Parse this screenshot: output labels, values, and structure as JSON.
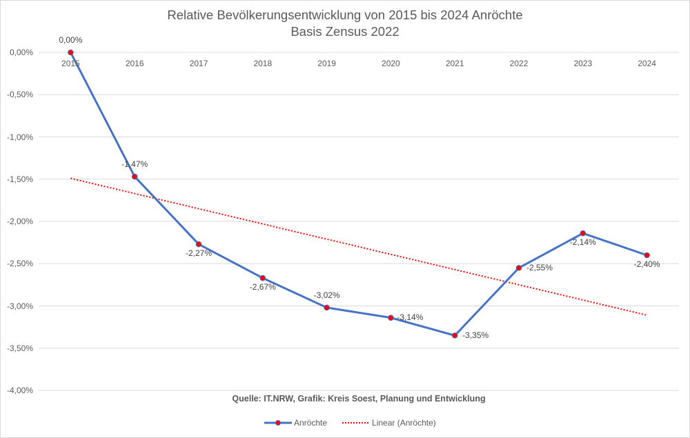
{
  "chart_data": {
    "type": "line",
    "title": "Relative Bevölkerungsentwicklung von 2015 bis 2024 Anröchte",
    "subtitle": "Basis Zensus 2022",
    "categories": [
      "2015",
      "2016",
      "2017",
      "2018",
      "2019",
      "2020",
      "2021",
      "2022",
      "2023",
      "2024"
    ],
    "series": [
      {
        "name": "Anröchte",
        "values": [
          0.0,
          -1.47,
          -2.27,
          -2.67,
          -3.02,
          -3.14,
          -3.35,
          -2.55,
          -2.14,
          -2.4
        ],
        "labels": [
          "0,00%",
          "-1,47%",
          "-2,27%",
          "-2,67%",
          "-3,02%",
          "-3,14%",
          "-3,35%",
          "-2,55%",
          "-2,14%",
          "-2,40%"
        ],
        "line_color": "#4472c4",
        "marker_color": "#ff0000"
      },
      {
        "name": "Linear (Anröchte)",
        "type": "trendline",
        "start": -1.49,
        "end": -3.11,
        "color": "#ff0000",
        "style": "dotted"
      }
    ],
    "xlabel": "",
    "ylabel": "",
    "ylim": [
      -4.0,
      0.0
    ],
    "yticks": [
      "0,00%",
      "-0,50%",
      "-1,00%",
      "-1,50%",
      "-2,00%",
      "-2,50%",
      "-3,00%",
      "-3,50%",
      "-4,00%"
    ],
    "grid": true,
    "legend_position": "bottom",
    "source_note": "Quelle: IT.NRW, Grafik: Kreis Soest, Planung und Entwicklung"
  },
  "legend": {
    "series_label": "Anröchte",
    "trend_label": "Linear (Anröchte)"
  }
}
